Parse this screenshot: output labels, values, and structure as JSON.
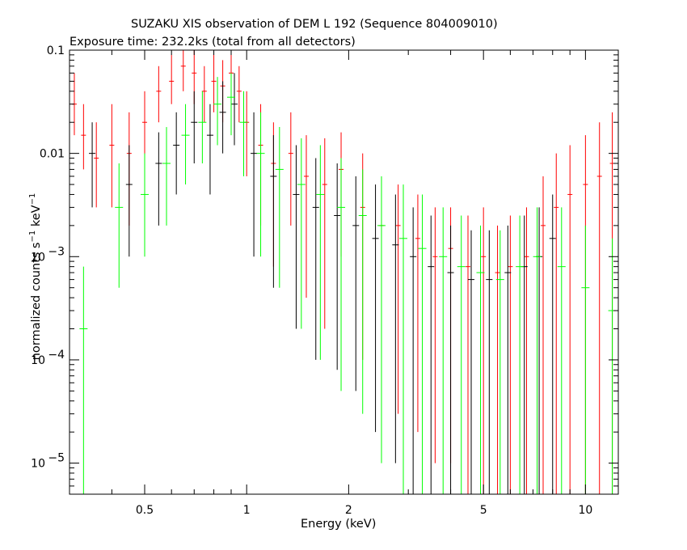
{
  "chart_data": {
    "type": "scatter",
    "title": "SUZAKU XIS observation of DEM L 192 (Sequence 804009010)",
    "subtitle": "Exposure time: 232.2ks (total from all detectors)",
    "xlabel": "Energy (keV)",
    "ylabel": {
      "base": "normalized counts s",
      "exp1": "−1",
      "mid": " keV",
      "exp2": "−1"
    },
    "x_scale": "log",
    "y_scale": "log",
    "xlim": [
      0.3,
      12.5
    ],
    "ylim": [
      5e-06,
      0.1
    ],
    "xticks": [
      {
        "value": 0.5,
        "label": "0.5"
      },
      {
        "value": 1,
        "label": "1"
      },
      {
        "value": 2,
        "label": "2"
      },
      {
        "value": 5,
        "label": "5"
      },
      {
        "value": 10,
        "label": "10"
      }
    ],
    "yticks": [
      {
        "value": 0.1,
        "label": "0.1"
      },
      {
        "value": 0.01,
        "label": "0.01"
      },
      {
        "value": 0.001,
        "label": "10",
        "exp": "−3"
      },
      {
        "value": 0.0001,
        "label": "10",
        "exp": "−4"
      },
      {
        "value": 1e-05,
        "label": "10",
        "exp": "−5"
      }
    ],
    "grid": false,
    "legend": "none",
    "series": [
      {
        "color": "#ff0000",
        "points": [
          {
            "x": 0.31,
            "y": 0.03,
            "lo": 0.015,
            "hi": 0.06
          },
          {
            "x": 0.33,
            "y": 0.015,
            "lo": 0.007,
            "hi": 0.03
          },
          {
            "x": 0.36,
            "y": 0.009,
            "lo": 0.003,
            "hi": 0.02
          },
          {
            "x": 0.4,
            "y": 0.012,
            "lo": 0.003,
            "hi": 0.03
          },
          {
            "x": 0.45,
            "y": 0.01,
            "lo": 0.002,
            "hi": 0.025
          },
          {
            "x": 0.5,
            "y": 0.02,
            "lo": 0.008,
            "hi": 0.04
          },
          {
            "x": 0.55,
            "y": 0.04,
            "lo": 0.02,
            "hi": 0.07
          },
          {
            "x": 0.6,
            "y": 0.05,
            "lo": 0.03,
            "hi": 0.09
          },
          {
            "x": 0.65,
            "y": 0.07,
            "lo": 0.04,
            "hi": 0.1
          },
          {
            "x": 0.7,
            "y": 0.06,
            "lo": 0.03,
            "hi": 0.1
          },
          {
            "x": 0.75,
            "y": 0.04,
            "lo": 0.02,
            "hi": 0.07
          },
          {
            "x": 0.8,
            "y": 0.05,
            "lo": 0.025,
            "hi": 0.09
          },
          {
            "x": 0.85,
            "y": 0.045,
            "lo": 0.02,
            "hi": 0.08
          },
          {
            "x": 0.9,
            "y": 0.06,
            "lo": 0.03,
            "hi": 0.1
          },
          {
            "x": 0.95,
            "y": 0.04,
            "lo": 0.02,
            "hi": 0.07
          },
          {
            "x": 1.0,
            "y": 0.02,
            "lo": 0.006,
            "hi": 0.04
          },
          {
            "x": 1.1,
            "y": 0.012,
            "lo": 0.002,
            "hi": 0.03
          },
          {
            "x": 1.2,
            "y": 0.008,
            "lo": 0.0008,
            "hi": 0.02
          },
          {
            "x": 1.35,
            "y": 0.01,
            "lo": 0.002,
            "hi": 0.025
          },
          {
            "x": 1.5,
            "y": 0.006,
            "lo": 0.0004,
            "hi": 0.015
          },
          {
            "x": 1.7,
            "y": 0.005,
            "lo": 0.0002,
            "hi": 0.014
          },
          {
            "x": 1.9,
            "y": 0.007,
            "lo": 0.001,
            "hi": 0.016
          },
          {
            "x": 2.2,
            "y": 0.003,
            "lo": 0.0001,
            "hi": 0.01
          },
          {
            "x": 2.5,
            "y": 0.002,
            "lo": 5e-05,
            "hi": 0.006
          },
          {
            "x": 2.8,
            "y": 0.002,
            "lo": 3e-05,
            "hi": 0.005
          },
          {
            "x": 3.2,
            "y": 0.0015,
            "lo": 2e-05,
            "hi": 0.004
          },
          {
            "x": 3.6,
            "y": 0.001,
            "lo": 1e-05,
            "hi": 0.003
          },
          {
            "x": 4.0,
            "y": 0.0012,
            "lo": 1e-05,
            "hi": 0.003
          },
          {
            "x": 4.5,
            "y": 0.0008,
            "lo": 5e-06,
            "hi": 0.0025
          },
          {
            "x": 5.0,
            "y": 0.001,
            "lo": 5e-06,
            "hi": 0.003
          },
          {
            "x": 5.5,
            "y": 0.0007,
            "lo": 5e-06,
            "hi": 0.002
          },
          {
            "x": 6.0,
            "y": 0.0008,
            "lo": 5e-06,
            "hi": 0.0025
          },
          {
            "x": 6.7,
            "y": 0.001,
            "lo": 5e-06,
            "hi": 0.003
          },
          {
            "x": 7.5,
            "y": 0.002,
            "lo": 5e-06,
            "hi": 0.006
          },
          {
            "x": 8.2,
            "y": 0.003,
            "lo": 5e-06,
            "hi": 0.01
          },
          {
            "x": 9.0,
            "y": 0.004,
            "lo": 5e-06,
            "hi": 0.012
          },
          {
            "x": 10.0,
            "y": 0.005,
            "lo": 5e-06,
            "hi": 0.015
          },
          {
            "x": 11.0,
            "y": 0.006,
            "lo": 5e-06,
            "hi": 0.02
          },
          {
            "x": 12.0,
            "y": 0.008,
            "lo": 5e-06,
            "hi": 0.025
          }
        ]
      },
      {
        "color": "#000000",
        "points": [
          {
            "x": 0.35,
            "y": 0.01,
            "lo": 0.003,
            "hi": 0.02
          },
          {
            "x": 0.45,
            "y": 0.005,
            "lo": 0.001,
            "hi": 0.012
          },
          {
            "x": 0.55,
            "y": 0.008,
            "lo": 0.002,
            "hi": 0.016
          },
          {
            "x": 0.62,
            "y": 0.012,
            "lo": 0.004,
            "hi": 0.025
          },
          {
            "x": 0.7,
            "y": 0.02,
            "lo": 0.008,
            "hi": 0.04
          },
          {
            "x": 0.78,
            "y": 0.015,
            "lo": 0.004,
            "hi": 0.03
          },
          {
            "x": 0.85,
            "y": 0.025,
            "lo": 0.01,
            "hi": 0.05
          },
          {
            "x": 0.92,
            "y": 0.03,
            "lo": 0.012,
            "hi": 0.06
          },
          {
            "x": 1.05,
            "y": 0.01,
            "lo": 0.001,
            "hi": 0.025
          },
          {
            "x": 1.2,
            "y": 0.006,
            "lo": 0.0005,
            "hi": 0.015
          },
          {
            "x": 1.4,
            "y": 0.004,
            "lo": 0.0002,
            "hi": 0.012
          },
          {
            "x": 1.6,
            "y": 0.003,
            "lo": 0.0001,
            "hi": 0.009
          },
          {
            "x": 1.85,
            "y": 0.0025,
            "lo": 8e-05,
            "hi": 0.008
          },
          {
            "x": 2.1,
            "y": 0.002,
            "lo": 5e-05,
            "hi": 0.006
          },
          {
            "x": 2.4,
            "y": 0.0015,
            "lo": 2e-05,
            "hi": 0.005
          },
          {
            "x": 2.75,
            "y": 0.0013,
            "lo": 1e-05,
            "hi": 0.004
          },
          {
            "x": 3.1,
            "y": 0.001,
            "lo": 5e-06,
            "hi": 0.003
          },
          {
            "x": 3.5,
            "y": 0.0008,
            "lo": 5e-06,
            "hi": 0.0025
          },
          {
            "x": 4.0,
            "y": 0.0007,
            "lo": 5e-06,
            "hi": 0.002
          },
          {
            "x": 4.6,
            "y": 0.0006,
            "lo": 5e-06,
            "hi": 0.0018
          },
          {
            "x": 5.2,
            "y": 0.0006,
            "lo": 5e-06,
            "hi": 0.0018
          },
          {
            "x": 5.9,
            "y": 0.0007,
            "lo": 5e-06,
            "hi": 0.002
          },
          {
            "x": 6.6,
            "y": 0.0008,
            "lo": 5e-06,
            "hi": 0.0025
          },
          {
            "x": 7.3,
            "y": 0.001,
            "lo": 5e-06,
            "hi": 0.003
          },
          {
            "x": 8.0,
            "y": 0.0015,
            "lo": 5e-06,
            "hi": 0.004
          }
        ]
      },
      {
        "color": "#00ff00",
        "points": [
          {
            "x": 0.33,
            "y": 0.0002,
            "lo": 5e-06,
            "hi": 0.0008
          },
          {
            "x": 0.42,
            "y": 0.003,
            "lo": 0.0005,
            "hi": 0.008
          },
          {
            "x": 0.5,
            "y": 0.004,
            "lo": 0.001,
            "hi": 0.01
          },
          {
            "x": 0.58,
            "y": 0.008,
            "lo": 0.002,
            "hi": 0.018
          },
          {
            "x": 0.66,
            "y": 0.015,
            "lo": 0.005,
            "hi": 0.03
          },
          {
            "x": 0.74,
            "y": 0.02,
            "lo": 0.008,
            "hi": 0.04
          },
          {
            "x": 0.82,
            "y": 0.03,
            "lo": 0.012,
            "hi": 0.055
          },
          {
            "x": 0.9,
            "y": 0.035,
            "lo": 0.015,
            "hi": 0.06
          },
          {
            "x": 0.98,
            "y": 0.02,
            "lo": 0.006,
            "hi": 0.04
          },
          {
            "x": 1.1,
            "y": 0.01,
            "lo": 0.001,
            "hi": 0.025
          },
          {
            "x": 1.25,
            "y": 0.007,
            "lo": 0.0005,
            "hi": 0.018
          },
          {
            "x": 1.45,
            "y": 0.005,
            "lo": 0.0002,
            "hi": 0.014
          },
          {
            "x": 1.65,
            "y": 0.004,
            "lo": 0.0001,
            "hi": 0.012
          },
          {
            "x": 1.9,
            "y": 0.003,
            "lo": 5e-05,
            "hi": 0.009
          },
          {
            "x": 2.2,
            "y": 0.0025,
            "lo": 3e-05,
            "hi": 0.007
          },
          {
            "x": 2.5,
            "y": 0.002,
            "lo": 1e-05,
            "hi": 0.006
          },
          {
            "x": 2.9,
            "y": 0.0015,
            "lo": 5e-06,
            "hi": 0.005
          },
          {
            "x": 3.3,
            "y": 0.0012,
            "lo": 5e-06,
            "hi": 0.004
          },
          {
            "x": 3.8,
            "y": 0.001,
            "lo": 5e-06,
            "hi": 0.003
          },
          {
            "x": 4.3,
            "y": 0.0008,
            "lo": 5e-06,
            "hi": 0.0025
          },
          {
            "x": 4.9,
            "y": 0.0007,
            "lo": 5e-06,
            "hi": 0.002
          },
          {
            "x": 5.6,
            "y": 0.0006,
            "lo": 5e-06,
            "hi": 0.0018
          },
          {
            "x": 6.4,
            "y": 0.0008,
            "lo": 5e-06,
            "hi": 0.0025
          },
          {
            "x": 7.2,
            "y": 0.001,
            "lo": 5e-06,
            "hi": 0.003
          },
          {
            "x": 8.5,
            "y": 0.0008,
            "lo": 5e-06,
            "hi": 0.003
          },
          {
            "x": 10.0,
            "y": 0.0005,
            "lo": 5e-06,
            "hi": 0.002
          },
          {
            "x": 12.0,
            "y": 0.0003,
            "lo": 5e-06,
            "hi": 0.0015
          }
        ]
      }
    ]
  }
}
